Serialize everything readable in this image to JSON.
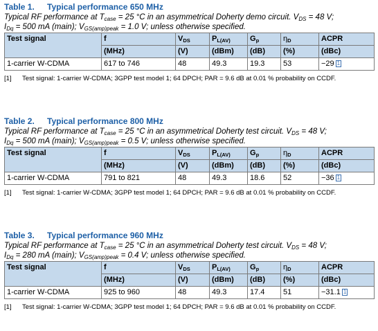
{
  "tables": [
    {
      "number": "Table 1.",
      "title": "Typical performance 650 MHz",
      "desc_pre": "Typical RF performance at T",
      "desc_sub1": "case",
      "desc_mid": " = 25 °C in an asymmetrical Doherty demo circuit. V",
      "desc_sub2": "DS",
      "desc_end": " = 48 V;",
      "desc2_pre": "I",
      "desc2_sub1": "Dq",
      "desc2_mid": " = 500 mA (main); V",
      "desc2_sub2": "GS(amp)peak",
      "desc2_end": " = 1.0 V; unless otherwise specified.",
      "row": {
        "signal": "1-carrier W-CDMA",
        "f": "617 to 746",
        "vds": "48",
        "pl": "49.3",
        "gp": "19.3",
        "eta": "53",
        "acpr": "−29"
      },
      "note_ref": "[1]",
      "note": "Test signal: 1-carrier W-CDMA; 3GPP test model 1; 64 DPCH; PAR = 9.6 dB at 0.01 % probability on CCDF."
    },
    {
      "number": "Table 2.",
      "title": "Typical performance 800 MHz",
      "desc_pre": "Typical RF performance at T",
      "desc_sub1": "case",
      "desc_mid": " = 25 °C in an asymmetrical Doherty test circuit. V",
      "desc_sub2": "DS",
      "desc_end": " = 48 V;",
      "desc2_pre": "I",
      "desc2_sub1": "Dq",
      "desc2_mid": " = 500 mA (main); V",
      "desc2_sub2": "GS(amp)peak",
      "desc2_end": " = 0.5 V; unless otherwise specified.",
      "row": {
        "signal": "1-carrier W-CDMA",
        "f": "791 to 821",
        "vds": "48",
        "pl": "49.3",
        "gp": "18.6",
        "eta": "52",
        "acpr": "−36"
      },
      "note_ref": "[1]",
      "note": "Test signal: 1-carrier W-CDMA; 3GPP test model 1; 64 DPCH; PAR = 9.6 dB at 0.01 % probability on CCDF."
    },
    {
      "number": "Table 3.",
      "title": "Typical performance 960 MHz",
      "desc_pre": "Typical RF performance at T",
      "desc_sub1": "case",
      "desc_mid": " = 25 °C in an asymmetrical Doherty test circuit. V",
      "desc_sub2": "DS",
      "desc_end": " = 48 V;",
      "desc2_pre": "I",
      "desc2_sub1": "Dq",
      "desc2_mid": " = 280 mA (main); V",
      "desc2_sub2": "GS(amp)peak",
      "desc2_end": " = 0.4 V; unless otherwise specified.",
      "row": {
        "signal": "1-carrier W-CDMA",
        "f": "925 to 960",
        "vds": "48",
        "pl": "49.3",
        "gp": "17.4",
        "eta": "51",
        "acpr": "−31.1"
      },
      "note_ref": "[1]",
      "note": "Test signal: 1-carrier W-CDMA; 3GPP test model 1; 64 DPCH; PAR = 9.6 dB at 0.01 % probability on CCDF."
    }
  ],
  "header": {
    "signal": "Test signal",
    "f": "f",
    "v": "V",
    "v_sub": "DS",
    "p": "P",
    "p_sub": "L(AV)",
    "g": "G",
    "g_sub": "p",
    "eta": "η",
    "eta_sub": "D",
    "acpr": "ACPR",
    "unit_f": "(MHz)",
    "unit_v": "(V)",
    "unit_p": "(dBm)",
    "unit_g": "(dB)",
    "unit_eta": "(%)",
    "unit_acpr": "(dBc)"
  },
  "ref_marker": "1"
}
